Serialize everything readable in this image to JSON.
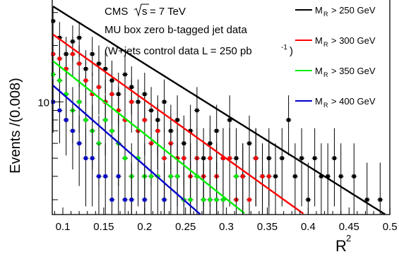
{
  "chart_data": {
    "type": "scatter",
    "ylabel_main": "Events /(0.008)",
    "xlabel_main": "R",
    "xlabel_sup": "2",
    "x_ticks": [
      "0.1",
      "0.15",
      "0.2",
      "0.25",
      "0.3",
      "0.35",
      "0.4",
      "0.45",
      "0.5"
    ],
    "y_tick_labels": [
      "10"
    ],
    "xlim": [
      0.08,
      0.5
    ],
    "ylim": [
      2.5,
      35
    ],
    "y_scale": "log",
    "annotations": {
      "line1_prefix": "CMS",
      "line1_root": "s",
      "line1_suffix": "= 7 TeV",
      "line2": "MU box zero b-tagged jet data",
      "line3_prefix": "(W+jets control data L = 250 pb",
      "line3_sup": "-1",
      "line3_suffix": ")"
    },
    "legend_position": "top-right",
    "series": [
      {
        "name_main": "M",
        "name_sub": "R",
        "name_rest": "> 250 GeV",
        "color": "#000000",
        "fit_amplitude": 30,
        "fit_slope": 6.3,
        "points": [
          [
            0.088,
            27
          ],
          [
            0.096,
            22
          ],
          [
            0.104,
            18
          ],
          [
            0.112,
            21
          ],
          [
            0.12,
            22
          ],
          [
            0.128,
            15
          ],
          [
            0.136,
            18
          ],
          [
            0.144,
            16
          ],
          [
            0.152,
            15
          ],
          [
            0.16,
            13
          ],
          [
            0.168,
            11
          ],
          [
            0.176,
            14
          ],
          [
            0.184,
            12
          ],
          [
            0.192,
            10
          ],
          [
            0.2,
            11
          ],
          [
            0.208,
            9
          ],
          [
            0.216,
            8
          ],
          [
            0.224,
            10
          ],
          [
            0.232,
            7
          ],
          [
            0.24,
            8
          ],
          [
            0.248,
            6
          ],
          [
            0.256,
            7
          ],
          [
            0.264,
            9
          ],
          [
            0.272,
            5
          ],
          [
            0.28,
            6
          ],
          [
            0.288,
            7
          ],
          [
            0.296,
            5
          ],
          [
            0.304,
            8
          ],
          [
            0.312,
            5
          ],
          [
            0.32,
            4
          ],
          [
            0.328,
            6
          ],
          [
            0.336,
            5
          ],
          [
            0.344,
            4
          ],
          [
            0.352,
            5
          ],
          [
            0.36,
            4
          ],
          [
            0.368,
            5
          ],
          [
            0.376,
            8
          ],
          [
            0.384,
            4
          ],
          [
            0.392,
            5
          ],
          [
            0.4,
            3
          ],
          [
            0.408,
            5
          ],
          [
            0.416,
            4
          ],
          [
            0.424,
            4
          ],
          [
            0.432,
            5
          ],
          [
            0.44,
            4
          ],
          [
            0.456,
            4
          ],
          [
            0.472,
            3
          ],
          [
            0.488,
            3
          ],
          [
            0.52,
            3
          ]
        ]
      },
      {
        "name_main": "M",
        "name_sub": "R",
        "name_rest": "> 300 GeV",
        "color": "#ff0000",
        "fit_amplitude": 21,
        "fit_slope": 7.2,
        "points": [
          [
            0.088,
            18
          ],
          [
            0.096,
            17
          ],
          [
            0.104,
            15
          ],
          [
            0.112,
            18
          ],
          [
            0.12,
            16
          ],
          [
            0.128,
            13
          ],
          [
            0.136,
            11
          ],
          [
            0.144,
            12
          ],
          [
            0.152,
            10
          ],
          [
            0.16,
            11
          ],
          [
            0.168,
            9
          ],
          [
            0.176,
            8
          ],
          [
            0.184,
            10
          ],
          [
            0.192,
            7
          ],
          [
            0.2,
            8
          ],
          [
            0.208,
            6
          ],
          [
            0.216,
            7
          ],
          [
            0.224,
            5
          ],
          [
            0.232,
            6
          ],
          [
            0.24,
            5
          ],
          [
            0.248,
            5
          ],
          [
            0.256,
            4
          ],
          [
            0.264,
            5
          ],
          [
            0.272,
            4
          ],
          [
            0.28,
            5
          ],
          [
            0.288,
            4
          ],
          [
            0.296,
            5
          ],
          [
            0.304,
            5
          ],
          [
            0.312,
            3
          ],
          [
            0.32,
            4
          ],
          [
            0.328,
            3
          ],
          [
            0.336,
            5
          ],
          [
            0.344,
            4
          ],
          [
            0.352,
            4
          ]
        ]
      },
      {
        "name_main": "M",
        "name_sub": "R",
        "name_rest": "> 350 GeV",
        "color": "#00ee00",
        "fit_amplitude": 15,
        "fit_slope": 8.0,
        "points": [
          [
            0.088,
            14
          ],
          [
            0.096,
            13
          ],
          [
            0.104,
            11
          ],
          [
            0.112,
            9
          ],
          [
            0.12,
            10
          ],
          [
            0.128,
            8
          ],
          [
            0.136,
            7
          ],
          [
            0.144,
            6
          ],
          [
            0.152,
            8
          ],
          [
            0.16,
            7
          ],
          [
            0.168,
            6
          ],
          [
            0.176,
            5
          ],
          [
            0.184,
            4
          ],
          [
            0.192,
            5
          ],
          [
            0.2,
            4
          ],
          [
            0.208,
            4
          ],
          [
            0.216,
            4
          ],
          [
            0.224,
            3
          ],
          [
            0.232,
            4
          ],
          [
            0.24,
            4
          ],
          [
            0.248,
            3
          ],
          [
            0.256,
            3
          ],
          [
            0.264,
            4
          ],
          [
            0.272,
            3
          ],
          [
            0.28,
            3
          ],
          [
            0.288,
            3
          ],
          [
            0.296,
            3
          ],
          [
            0.312,
            4
          ]
        ]
      },
      {
        "name_main": "M",
        "name_sub": "R",
        "name_rest": "> 400 GeV",
        "color": "#0000cc",
        "fit_amplitude": 11,
        "fit_slope": 8.8,
        "points": [
          [
            0.088,
            10
          ],
          [
            0.096,
            9
          ],
          [
            0.104,
            8
          ],
          [
            0.112,
            7
          ],
          [
            0.12,
            6
          ],
          [
            0.128,
            5
          ],
          [
            0.136,
            5
          ],
          [
            0.144,
            4
          ],
          [
            0.152,
            4
          ],
          [
            0.16,
            3
          ],
          [
            0.168,
            4
          ],
          [
            0.176,
            3
          ],
          [
            0.184,
            3
          ],
          [
            0.2,
            3
          ],
          [
            0.224,
            3
          ]
        ]
      }
    ]
  }
}
